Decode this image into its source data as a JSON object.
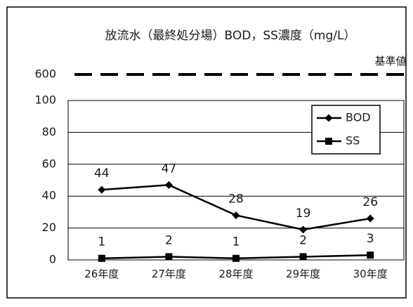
{
  "chart_data": {
    "type": "line",
    "title": "放流水（最終処分場）BOD，SS濃度（mg/L）",
    "categories": [
      "26年度",
      "27年度",
      "28年度",
      "29年度",
      "30年度"
    ],
    "series": [
      {
        "name": "BOD",
        "marker": "diamond",
        "values": [
          44,
          47,
          28,
          19,
          26
        ]
      },
      {
        "name": "SS",
        "marker": "square",
        "values": [
          1,
          2,
          1,
          2,
          3
        ]
      }
    ],
    "ylim": [
      0,
      100
    ],
    "yticks": [
      "0",
      "20",
      "40",
      "60",
      "80",
      "100"
    ],
    "standard": {
      "label": "基準値",
      "value": 600,
      "tick_label": "600"
    },
    "legend_position": "top-right",
    "grid": true,
    "colors": {
      "line": "#000000",
      "grid": "#000000",
      "border": "#000000"
    }
  }
}
